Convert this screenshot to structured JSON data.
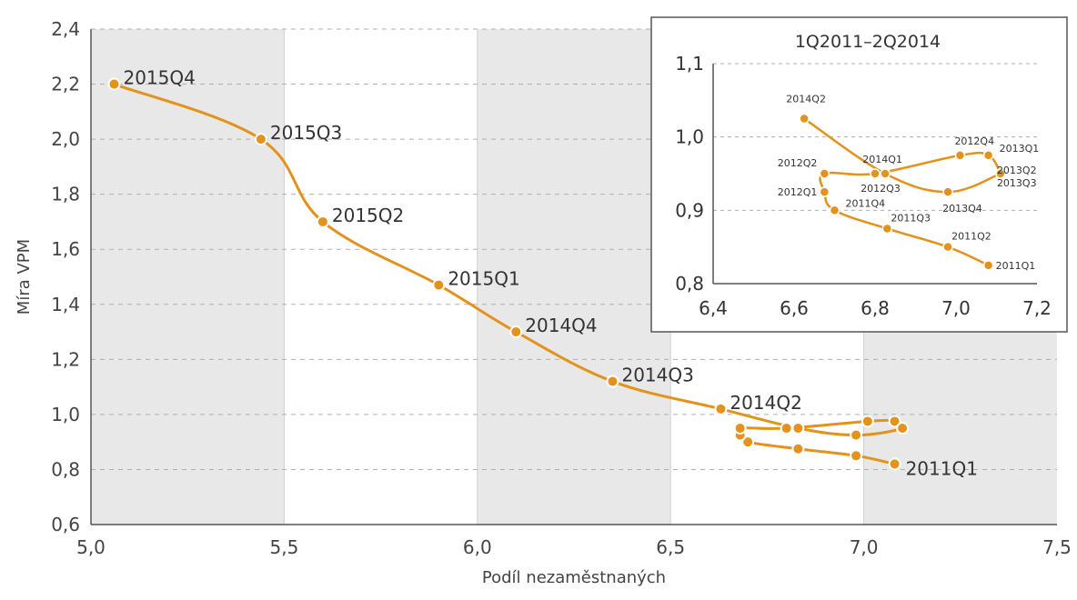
{
  "colors": {
    "series": "#E3921C",
    "band": "#E8E8E8",
    "grid_dash": "#B0B0B0",
    "axis": "#555555"
  },
  "chart_data": [
    {
      "type": "line",
      "title": "",
      "xlabel": "Podíl nezaměstnaných",
      "ylabel": "Míra VPM",
      "xlim": [
        5.0,
        7.5
      ],
      "ylim": [
        0.6,
        2.4
      ],
      "x_ticks": [
        "5,0",
        "5,5",
        "6,0",
        "6,5",
        "7,0",
        "7,5"
      ],
      "y_ticks": [
        "0,6",
        "0,8",
        "1,0",
        "1,2",
        "1,4",
        "1,6",
        "1,8",
        "2,0",
        "2,2",
        "2,4"
      ],
      "grid": "horizontal dashed with alternating vertical bands",
      "series": [
        {
          "points": [
            {
              "x": 7.08,
              "y": 0.82,
              "label": "2011Q1"
            },
            {
              "x": 6.98,
              "y": 0.85,
              "label": ""
            },
            {
              "x": 6.83,
              "y": 0.875,
              "label": ""
            },
            {
              "x": 6.7,
              "y": 0.9,
              "label": ""
            },
            {
              "x": 6.68,
              "y": 0.925,
              "label": ""
            },
            {
              "x": 6.68,
              "y": 0.95,
              "label": ""
            },
            {
              "x": 6.8,
              "y": 0.95,
              "label": ""
            },
            {
              "x": 7.01,
              "y": 0.975,
              "label": ""
            },
            {
              "x": 7.08,
              "y": 0.975,
              "label": ""
            },
            {
              "x": 7.1,
              "y": 0.95,
              "label": ""
            },
            {
              "x": 6.98,
              "y": 0.925,
              "label": ""
            },
            {
              "x": 6.83,
              "y": 0.95,
              "label": ""
            },
            {
              "x": 6.63,
              "y": 1.02,
              "label": "2014Q2"
            },
            {
              "x": 6.35,
              "y": 1.12,
              "label": "2014Q3"
            },
            {
              "x": 6.1,
              "y": 1.3,
              "label": "2014Q4"
            },
            {
              "x": 5.9,
              "y": 1.47,
              "label": "2015Q1"
            },
            {
              "x": 5.6,
              "y": 1.7,
              "label": "2015Q2"
            },
            {
              "x": 5.44,
              "y": 2.0,
              "label": "2015Q3"
            },
            {
              "x": 5.06,
              "y": 2.2,
              "label": "2015Q4"
            }
          ]
        }
      ]
    },
    {
      "type": "line",
      "title": "1Q2011–2Q2014",
      "xlim": [
        6.4,
        7.2
      ],
      "ylim": [
        0.8,
        1.1
      ],
      "x_ticks": [
        "6,4",
        "6,6",
        "6,8",
        "7,0",
        "7,2"
      ],
      "y_ticks": [
        "0,8",
        "0,9",
        "1,0",
        "1,1"
      ],
      "series": [
        {
          "points": [
            {
              "x": 7.08,
              "y": 0.825,
              "label": "2011Q1"
            },
            {
              "x": 6.98,
              "y": 0.85,
              "label": "2011Q2"
            },
            {
              "x": 6.83,
              "y": 0.875,
              "label": "2011Q3"
            },
            {
              "x": 6.7,
              "y": 0.9,
              "label": "2011Q4"
            },
            {
              "x": 6.675,
              "y": 0.925,
              "label": "2012Q1"
            },
            {
              "x": 6.675,
              "y": 0.95,
              "label": "2012Q2"
            },
            {
              "x": 6.8,
              "y": 0.95,
              "label": "2012Q3"
            },
            {
              "x": 7.01,
              "y": 0.975,
              "label": "2012Q4"
            },
            {
              "x": 7.08,
              "y": 0.975,
              "label": "2013Q1"
            },
            {
              "x": 7.11,
              "y": 0.95,
              "label": "2013Q2"
            },
            {
              "x": 7.11,
              "y": 0.95,
              "label": "2013Q3"
            },
            {
              "x": 6.98,
              "y": 0.925,
              "label": "2013Q4"
            },
            {
              "x": 6.825,
              "y": 0.95,
              "label": "2014Q1"
            },
            {
              "x": 6.625,
              "y": 1.025,
              "label": "2014Q2"
            }
          ]
        }
      ]
    }
  ]
}
